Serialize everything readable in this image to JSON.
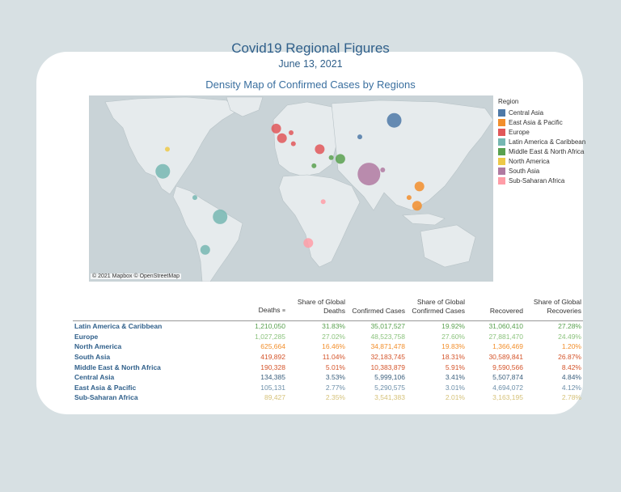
{
  "header": {
    "title": "Covid19 Regional Figures",
    "date": "June 13, 2021",
    "map_title": "Density Map of Confirmed Cases by Regions"
  },
  "map": {
    "attribution": "© 2021 Mapbox © OpenStreetMap"
  },
  "legend": {
    "title": "Region",
    "items": [
      {
        "label": "Central Asia",
        "color": "#4e79a7"
      },
      {
        "label": "East Asia & Pacific",
        "color": "#f28e2b"
      },
      {
        "label": "Europe",
        "color": "#e15759"
      },
      {
        "label": "Latin America & Caribbean",
        "color": "#76b7b2"
      },
      {
        "label": "Middle East & North Africa",
        "color": "#59a14f"
      },
      {
        "label": "North America",
        "color": "#edc948"
      },
      {
        "label": "South Asia",
        "color": "#b07aa1"
      },
      {
        "label": "Sub-Saharan Africa",
        "color": "#ff9da7"
      }
    ]
  },
  "table": {
    "headers": {
      "deaths": "Deaths",
      "share_deaths_1": "Share of Global",
      "share_deaths_2": "Deaths",
      "confirmed": "Confirmed Cases",
      "share_confirmed_1": "Share of Global",
      "share_confirmed_2": "Confirmed Cases",
      "recovered": "Recovered",
      "share_recovered_1": "Share of Global",
      "share_recovered_2": "Recoveries"
    },
    "rows": [
      {
        "region": "Latin America & Caribbean",
        "deaths": "1,210,050",
        "share_deaths": "31.83%",
        "confirmed": "35,017,527",
        "share_confirmed": "19.92%",
        "recovered": "31,060,410",
        "share_recovered": "27.28%",
        "color": "#59a14f"
      },
      {
        "region": "Europe",
        "deaths": "1,027,285",
        "share_deaths": "27.02%",
        "confirmed": "48,523,758",
        "share_confirmed": "27.60%",
        "recovered": "27,881,470",
        "share_recovered": "24.49%",
        "color": "#8cc37e"
      },
      {
        "region": "North America",
        "deaths": "625,664",
        "share_deaths": "16.46%",
        "confirmed": "34,871,478",
        "share_confirmed": "19.83%",
        "recovered": "1,366,469",
        "share_recovered": "1.20%",
        "color": "#f28e2b"
      },
      {
        "region": "South Asia",
        "deaths": "419,892",
        "share_deaths": "11.04%",
        "confirmed": "32,183,745",
        "share_confirmed": "18.31%",
        "recovered": "30,589,841",
        "share_recovered": "26.87%",
        "color": "#d4542a"
      },
      {
        "region": "Middle East & North Africa",
        "deaths": "190,328",
        "share_deaths": "5.01%",
        "confirmed": "10,383,879",
        "share_confirmed": "5.91%",
        "recovered": "9,590,566",
        "share_recovered": "8.42%",
        "color": "#d4542a"
      },
      {
        "region": "Central Asia",
        "deaths": "134,385",
        "share_deaths": "3.53%",
        "confirmed": "5,999,106",
        "share_confirmed": "3.41%",
        "recovered": "5,507,874",
        "share_recovered": "4.84%",
        "color": "#3b5f7d"
      },
      {
        "region": "East Asia & Pacific",
        "deaths": "105,131",
        "share_deaths": "2.77%",
        "confirmed": "5,290,575",
        "share_confirmed": "3.01%",
        "recovered": "4,694,072",
        "share_recovered": "4.12%",
        "color": "#6c8ea8"
      },
      {
        "region": "Sub-Saharan Africa",
        "deaths": "89,427",
        "share_deaths": "2.35%",
        "confirmed": "3,541,383",
        "share_confirmed": "2.01%",
        "recovered": "3,163,195",
        "share_recovered": "2.78%",
        "color": "#d6c27a"
      }
    ]
  },
  "chart_data": {
    "type": "scatter",
    "title": "Density Map of Confirmed Cases by Regions",
    "legend_title": "Region",
    "legend_position": "right",
    "note": "bubble map; bubble size = confirmed cases by country",
    "series": [
      {
        "name": "Central Asia",
        "points": [
          {
            "lon": 100,
            "lat": 60,
            "size": "large"
          },
          {
            "lon": 70,
            "lat": 48,
            "size": "small"
          }
        ]
      },
      {
        "name": "East Asia & Pacific",
        "points": [
          {
            "lon": 120,
            "lat": -2,
            "size": "medium"
          },
          {
            "lon": 122,
            "lat": 12,
            "size": "medium"
          },
          {
            "lon": 113,
            "lat": 4,
            "size": "small"
          }
        ]
      },
      {
        "name": "Europe",
        "points": [
          {
            "lon": -3,
            "lat": 54,
            "size": "medium"
          },
          {
            "lon": 2,
            "lat": 47,
            "size": "medium"
          },
          {
            "lon": 10,
            "lat": 51,
            "size": "small"
          },
          {
            "lon": 12,
            "lat": 43,
            "size": "small"
          },
          {
            "lon": 35,
            "lat": 39,
            "size": "medium"
          }
        ]
      },
      {
        "name": "Latin America & Caribbean",
        "points": [
          {
            "lon": -52,
            "lat": -10,
            "size": "large"
          },
          {
            "lon": -102,
            "lat": 23,
            "size": "large"
          },
          {
            "lon": -65,
            "lat": -34,
            "size": "medium"
          },
          {
            "lon": -74,
            "lat": 4,
            "size": "small"
          }
        ]
      },
      {
        "name": "Middle East & North Africa",
        "points": [
          {
            "lon": 53,
            "lat": 32,
            "size": "medium"
          },
          {
            "lon": 45,
            "lat": 33,
            "size": "small"
          },
          {
            "lon": 30,
            "lat": 27,
            "size": "small"
          }
        ]
      },
      {
        "name": "North America",
        "points": [
          {
            "lon": -98,
            "lat": 39,
            "size": "small"
          }
        ]
      },
      {
        "name": "South Asia",
        "points": [
          {
            "lon": 78,
            "lat": 21,
            "size": "largest"
          },
          {
            "lon": 90,
            "lat": 24,
            "size": "small"
          }
        ]
      },
      {
        "name": "Sub-Saharan Africa",
        "points": [
          {
            "lon": 25,
            "lat": -29,
            "size": "medium"
          },
          {
            "lon": 38,
            "lat": 1,
            "size": "small"
          }
        ]
      }
    ]
  }
}
